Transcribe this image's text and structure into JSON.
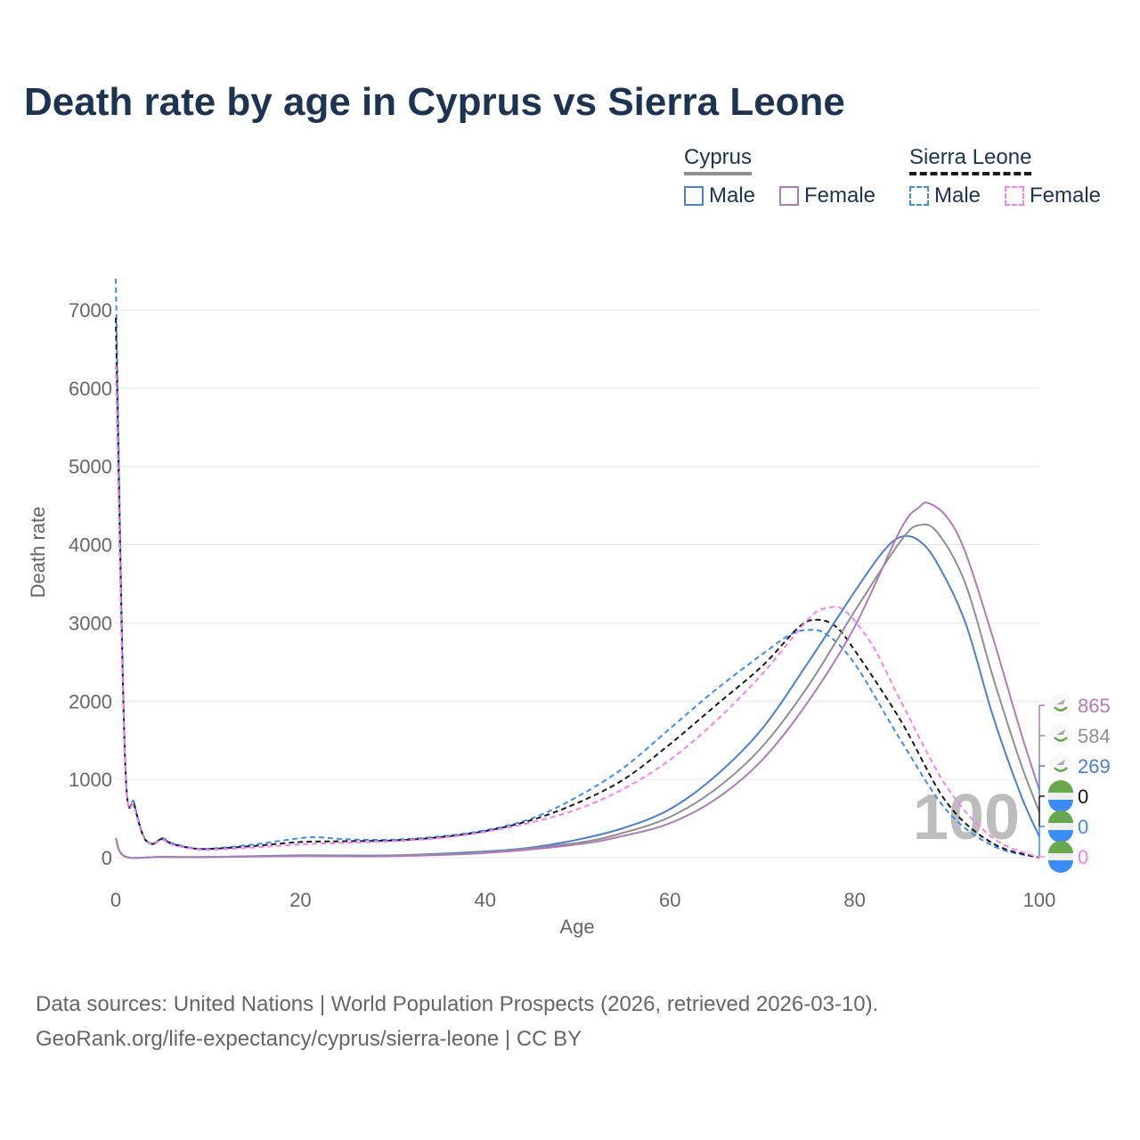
{
  "title": "Death rate by age in Cyprus vs Sierra Leone",
  "legend": {
    "groups": [
      {
        "name": "Cyprus",
        "items": [
          {
            "label": "Male",
            "color": "#4a7fd1",
            "dashed": false
          },
          {
            "label": "Female",
            "color": "#b07ab8",
            "dashed": false
          }
        ]
      },
      {
        "name": "Sierra Leone",
        "items": [
          {
            "label": "Male",
            "color": "#3b8cf5",
            "dashed": true
          },
          {
            "label": "Female",
            "color": "#f77ff0",
            "dashed": true
          }
        ]
      }
    ]
  },
  "footer": {
    "line1": "Data sources: United Nations | World Population Prospects (2026, retrieved 2026-03-10).",
    "line2": "GeoRank.org/life-expectancy/cyprus/sierra-leone | CC BY"
  },
  "chart_data": {
    "type": "line",
    "xlabel": "Age",
    "ylabel": "Death rate",
    "xlim": [
      0,
      100
    ],
    "ylim": [
      0,
      7500
    ],
    "xticks": [
      "0",
      "20",
      "40",
      "60",
      "80",
      "100"
    ],
    "yticks": [
      "0",
      "1000",
      "2000",
      "3000",
      "4000",
      "5000",
      "6000",
      "7000"
    ],
    "grid": true,
    "age_marker": "100",
    "series": [
      {
        "name": "Sierra Leone Male",
        "color": "#3b8cf5",
        "dashed": true,
        "end_label": "0",
        "x": [
          0,
          1,
          2,
          3,
          4,
          5,
          6,
          8,
          10,
          15,
          20,
          22,
          25,
          30,
          35,
          40,
          45,
          50,
          55,
          60,
          65,
          70,
          73,
          75,
          77,
          80,
          85,
          90,
          95,
          100
        ],
        "y": [
          7400,
          1300,
          700,
          280,
          180,
          250,
          190,
          130,
          115,
          170,
          250,
          260,
          235,
          230,
          270,
          350,
          500,
          780,
          1150,
          1650,
          2150,
          2600,
          2850,
          2910,
          2850,
          2480,
          1500,
          600,
          150,
          0
        ]
      },
      {
        "name": "Sierra Leone Total",
        "color": "#1a1a1a",
        "dashed": true,
        "end_label": "0",
        "x": [
          0,
          1,
          2,
          3,
          4,
          5,
          6,
          8,
          10,
          15,
          20,
          25,
          30,
          35,
          40,
          45,
          50,
          55,
          60,
          65,
          70,
          74,
          76,
          78,
          80,
          85,
          90,
          95,
          100
        ],
        "y": [
          6900,
          1250,
          680,
          270,
          175,
          240,
          180,
          125,
          110,
          150,
          200,
          210,
          220,
          260,
          340,
          480,
          700,
          1000,
          1450,
          1950,
          2450,
          2950,
          3040,
          2950,
          2650,
          1750,
          700,
          180,
          0
        ]
      },
      {
        "name": "Sierra Leone Female",
        "color": "#f77ff0",
        "dashed": true,
        "end_label": "0",
        "x": [
          0,
          1,
          2,
          3,
          4,
          5,
          6,
          8,
          10,
          15,
          20,
          25,
          30,
          35,
          40,
          45,
          50,
          55,
          60,
          65,
          70,
          75,
          77,
          79,
          82,
          85,
          90,
          95,
          100
        ],
        "y": [
          6300,
          1200,
          650,
          260,
          170,
          230,
          170,
          120,
          100,
          130,
          170,
          190,
          210,
          250,
          330,
          450,
          620,
          880,
          1250,
          1750,
          2350,
          3050,
          3190,
          3150,
          2700,
          2000,
          900,
          250,
          0
        ]
      },
      {
        "name": "Cyprus Male",
        "color": "#4a7fd1",
        "dashed": false,
        "end_label": "269",
        "x": [
          0,
          1,
          5,
          10,
          20,
          30,
          40,
          45,
          50,
          55,
          60,
          65,
          70,
          75,
          80,
          83,
          85,
          87,
          89,
          92,
          95,
          98,
          100
        ],
        "y": [
          250,
          15,
          10,
          8,
          30,
          30,
          80,
          130,
          230,
          380,
          620,
          1050,
          1650,
          2500,
          3400,
          3900,
          4100,
          4050,
          3750,
          3000,
          1800,
          800,
          269
        ]
      },
      {
        "name": "Cyprus Total",
        "color": "#8f8f8f",
        "dashed": false,
        "end_label": "584",
        "x": [
          0,
          1,
          5,
          10,
          20,
          30,
          40,
          50,
          55,
          60,
          65,
          70,
          75,
          80,
          85,
          87,
          89,
          92,
          95,
          98,
          100
        ],
        "y": [
          250,
          15,
          10,
          8,
          25,
          25,
          70,
          190,
          320,
          520,
          880,
          1420,
          2200,
          3150,
          4050,
          4250,
          4150,
          3500,
          2300,
          1200,
          584
        ]
      },
      {
        "name": "Cyprus Female",
        "color": "#b07ab8",
        "dashed": false,
        "end_label": "865",
        "x": [
          0,
          1,
          5,
          10,
          20,
          30,
          40,
          50,
          55,
          60,
          65,
          70,
          75,
          80,
          85,
          87,
          88,
          90,
          92,
          95,
          98,
          100
        ],
        "y": [
          250,
          15,
          10,
          8,
          20,
          20,
          60,
          170,
          280,
          440,
          750,
          1250,
          2000,
          2950,
          4200,
          4480,
          4530,
          4350,
          3900,
          2800,
          1600,
          865
        ]
      }
    ]
  }
}
